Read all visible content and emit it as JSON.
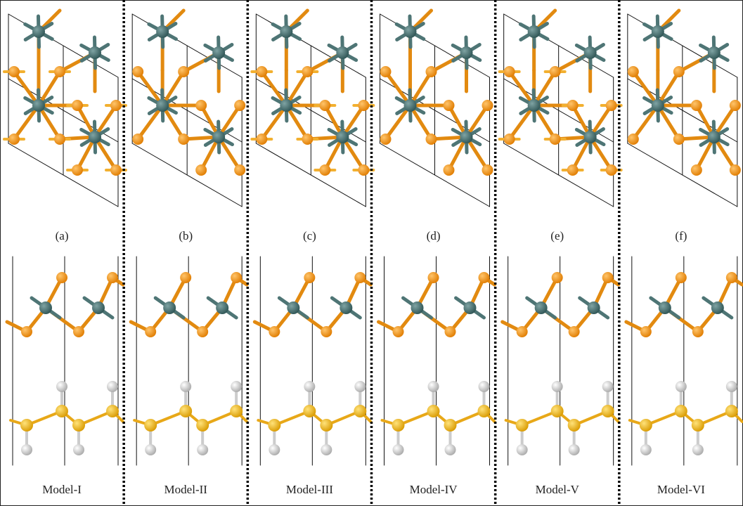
{
  "panels": [
    {
      "label": "(a)",
      "model": "Model-I"
    },
    {
      "label": "(b)",
      "model": "Model-II"
    },
    {
      "label": "(c)",
      "model": "Model-III"
    },
    {
      "label": "(d)",
      "model": "Model-IV"
    },
    {
      "label": "(e)",
      "model": "Model-V"
    },
    {
      "label": "(f)",
      "model": "Model-VI"
    }
  ]
}
